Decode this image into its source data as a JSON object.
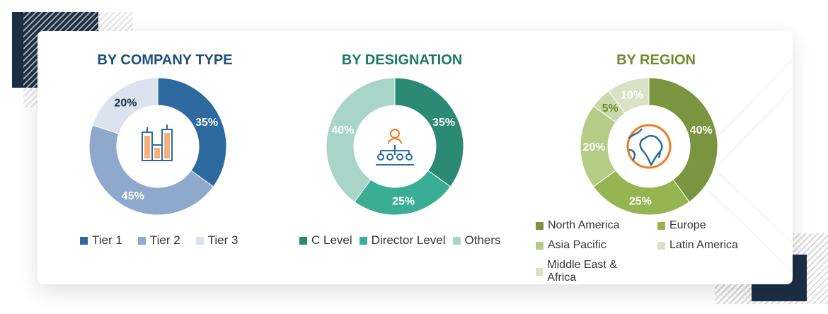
{
  "chart_data": [
    {
      "type": "pie",
      "title": "BY COMPANY TYPE",
      "title_color": "#1f4e79",
      "categories": [
        "Tier 1",
        "Tier 2",
        "Tier 3"
      ],
      "values": [
        35,
        45,
        20
      ],
      "labels": [
        "35%",
        "45%",
        "20%"
      ],
      "colors": [
        "#2e69a0",
        "#8ea9cc",
        "#dbe3ee"
      ],
      "label_colors": [
        "#fff",
        "#fff",
        "#1b2e44"
      ],
      "center_icon": "buildings-icon",
      "legend": "bottom"
    },
    {
      "type": "pie",
      "title": "BY DESIGNATION",
      "title_color": "#1e7a66",
      "categories": [
        "C Level",
        "Director Level",
        "Others"
      ],
      "values": [
        35,
        25,
        40
      ],
      "labels": [
        "35%",
        "25%",
        "40%"
      ],
      "colors": [
        "#2a8a74",
        "#3aae94",
        "#a9d4c8"
      ],
      "label_colors": [
        "#fff",
        "#fff",
        "#fff"
      ],
      "center_icon": "team-hierarchy-icon",
      "legend": "bottom"
    },
    {
      "type": "pie",
      "title": "BY REGION",
      "title_color": "#6b8c2f",
      "categories": [
        "North America",
        "Europe",
        "Asia Pacific",
        "Latin America",
        "Middle East & Africa"
      ],
      "values": [
        40,
        25,
        20,
        5,
        10
      ],
      "labels": [
        "40%",
        "25%",
        "20%",
        "5%",
        "10%"
      ],
      "colors": [
        "#7a9440",
        "#97b452",
        "#b5cc86",
        "#c9d9aa",
        "#d7e3c4"
      ],
      "label_colors": [
        "#fff",
        "#fff",
        "#fff",
        "#6b8c2f",
        "#fff"
      ],
      "legend_colors": [
        "#7a9440",
        "#97b452",
        "#b5cc86",
        "#d7e3c4",
        "#d7e3c4"
      ],
      "center_icon": "globe-icon",
      "legend": "bottom"
    }
  ]
}
